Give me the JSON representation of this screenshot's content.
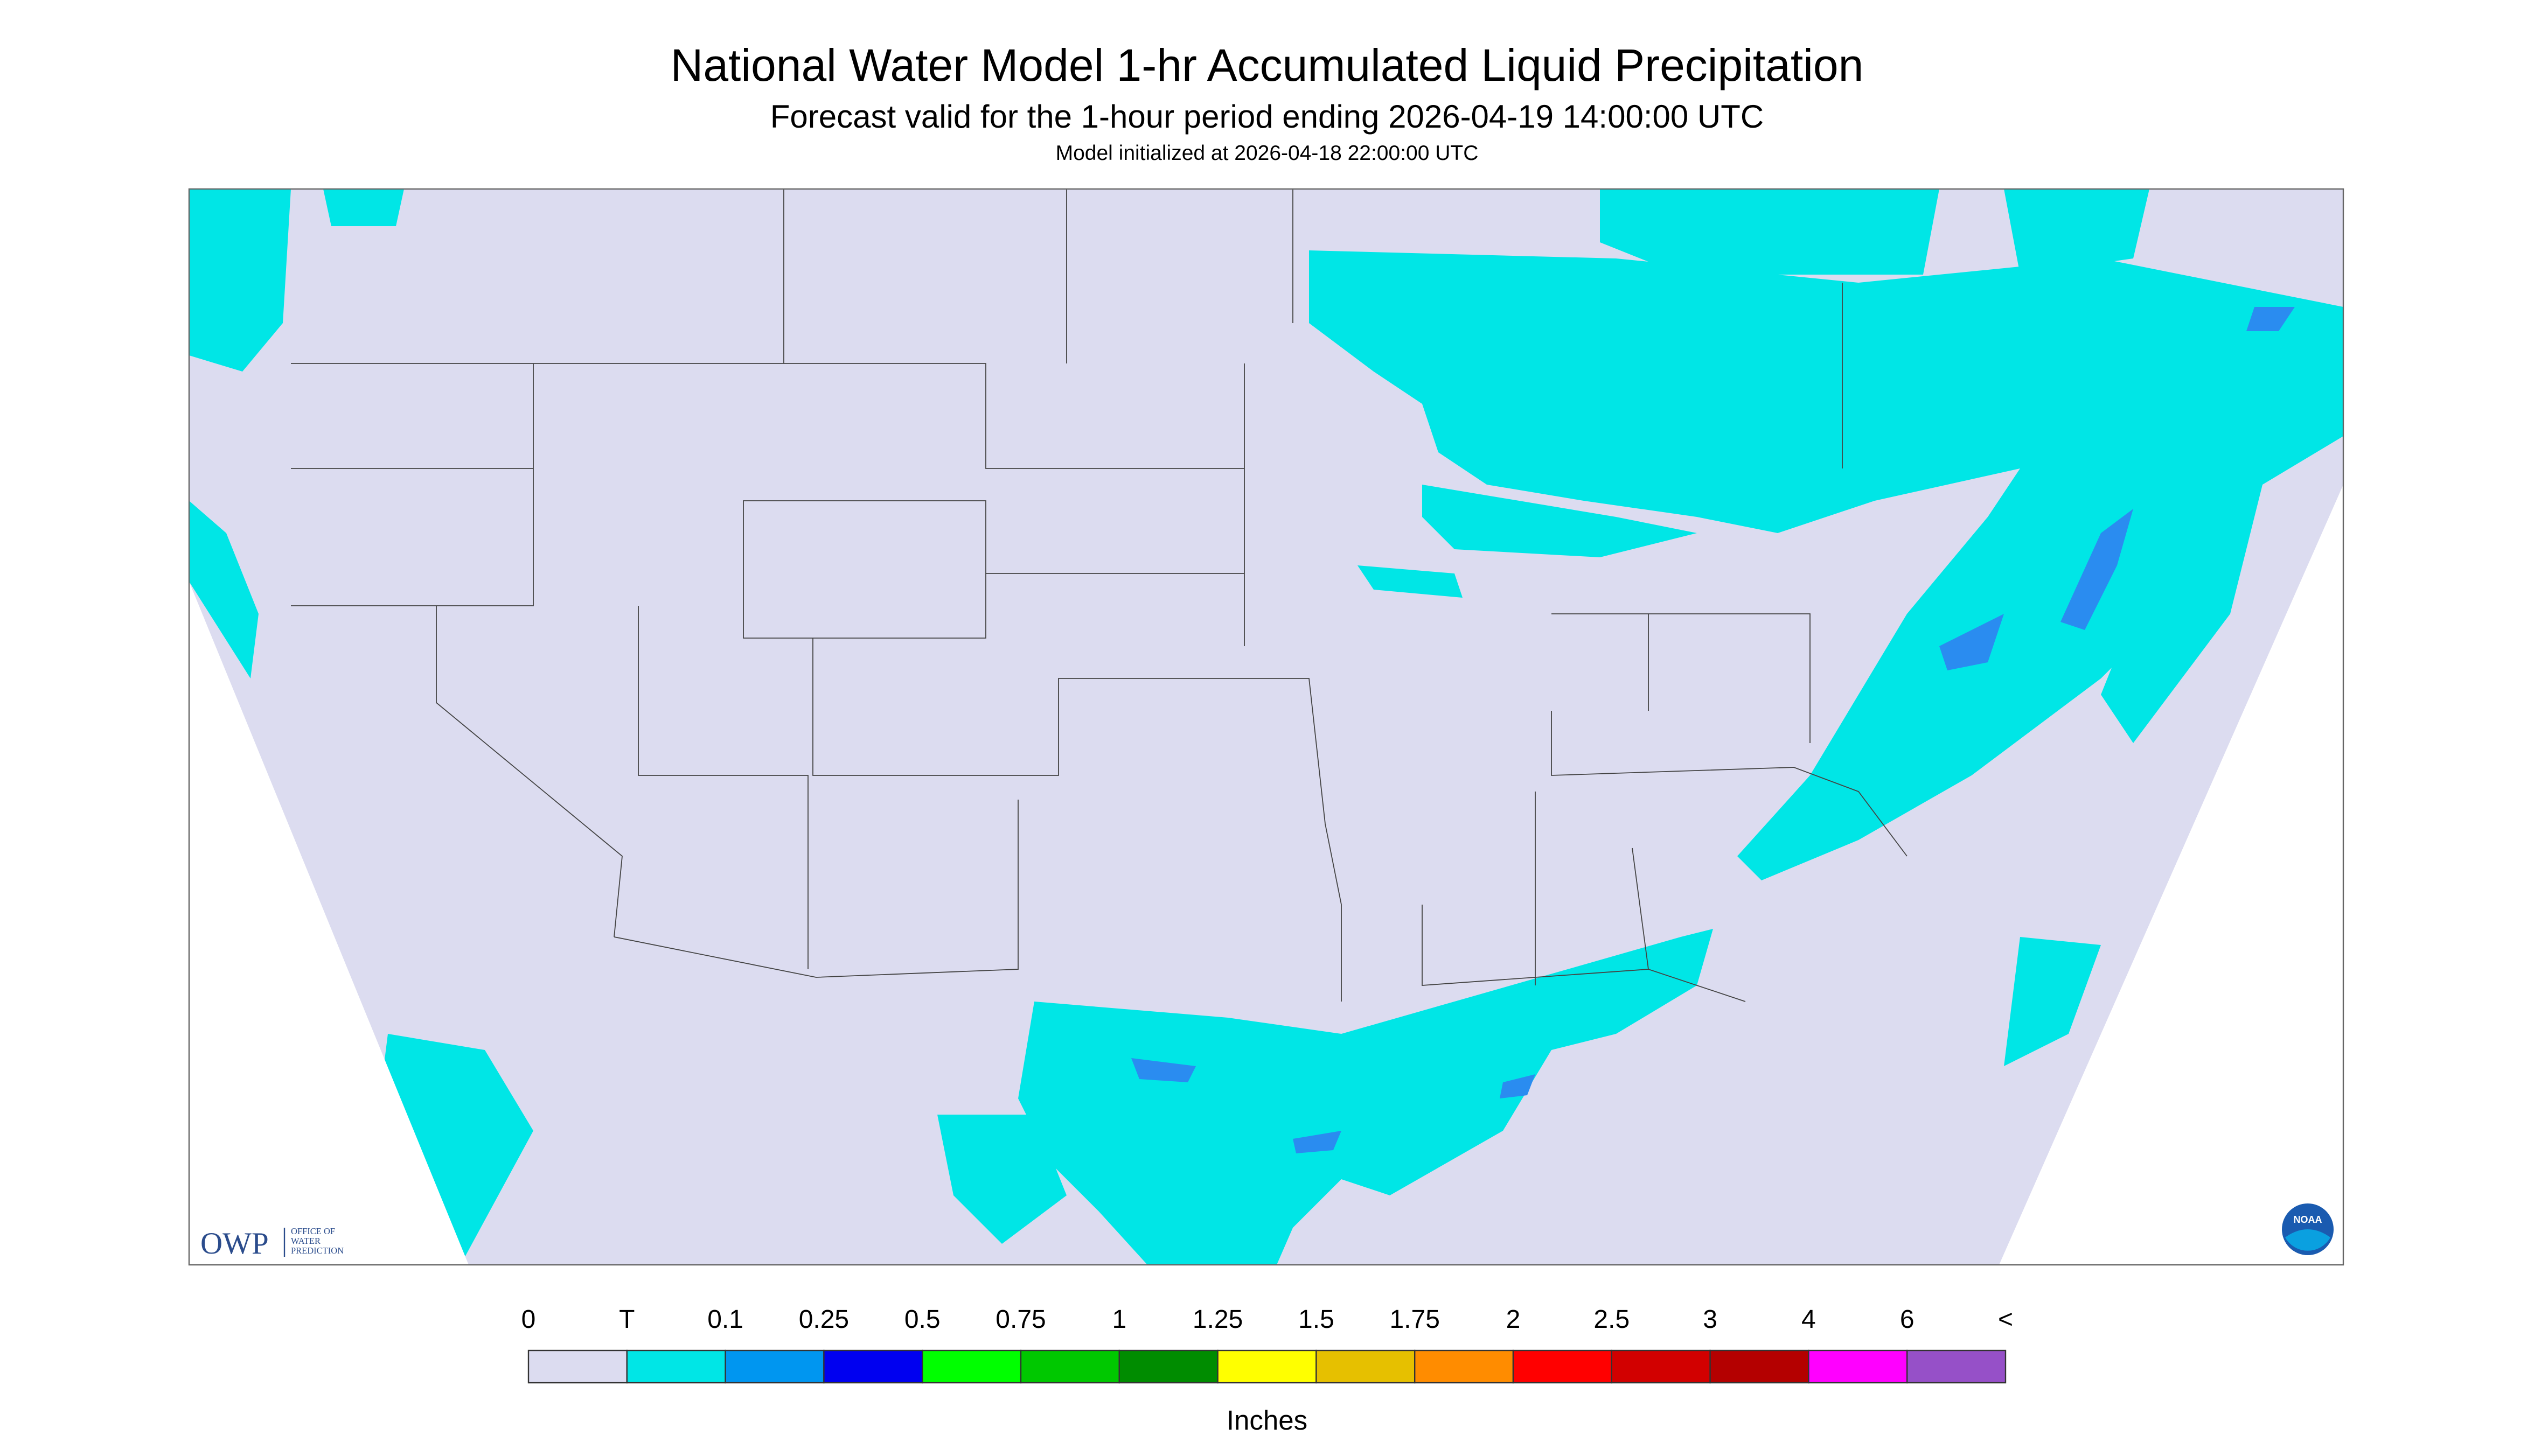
{
  "header": {
    "title": "National Water Model 1-hr Accumulated Liquid Precipitation",
    "subtitle": "Forecast valid for the 1-hour period ending 2026-04-19 14:00:00 UTC",
    "note": "Model initialized at 2026-04-18 22:00:00 UTC"
  },
  "logo": {
    "name": "OWP",
    "text": [
      "OFFICE OF",
      "WATER",
      "PREDICTION"
    ],
    "badge": "NOAA"
  },
  "legend": {
    "labels": [
      "0",
      "T",
      "0.1",
      "0.25",
      "0.5",
      "0.75",
      "1",
      "1.25",
      "1.5",
      "1.75",
      "2",
      "2.5",
      "3",
      "4",
      "6",
      "<"
    ],
    "colors": [
      "#dcdcf0",
      "#00e6e6",
      "#0096f0",
      "#0000f0",
      "#00ff00",
      "#00c800",
      "#008c00",
      "#ffff00",
      "#e6c000",
      "#ff8c00",
      "#ff0000",
      "#d20000",
      "#b40000",
      "#ff00ff",
      "#9650c8"
    ],
    "units": "Inches"
  }
}
